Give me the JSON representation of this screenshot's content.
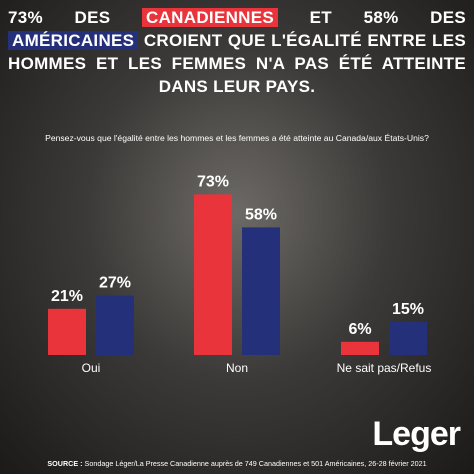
{
  "chart_data": {
    "type": "bar",
    "title_parts": [
      "73% DES",
      "ET 58% DES",
      "CROIENT QUE L'ÉGALITÉ ENTRE LES HOMMES ET LES FEMMES N'A PAS ÉTÉ ATTEINTE DANS LEUR PAYS."
    ],
    "subtitle": "Pensez-vous que l'égalité entre les hommes et les femmes a été atteinte au Canada/aux États-Unis?",
    "categories": [
      "Oui",
      "Non",
      "Ne sait pas/Refus"
    ],
    "series": [
      {
        "name": "CANADIENNES",
        "color": "#e8343a",
        "values": [
          21,
          73,
          6
        ],
        "value_labels": [
          "21%",
          "73%",
          "6%"
        ]
      },
      {
        "name": "AMÉRICAINES",
        "color": "#25307a",
        "values": [
          27,
          58,
          15
        ],
        "value_labels": [
          "27%",
          "58%",
          "15%"
        ]
      }
    ],
    "source_label": "SOURCE :",
    "source": "Sondage Léger/La Presse Canadienne auprès de 749 Canadiennes et 501 Américaines, 26-28 février 2021",
    "logo": "Leger"
  }
}
